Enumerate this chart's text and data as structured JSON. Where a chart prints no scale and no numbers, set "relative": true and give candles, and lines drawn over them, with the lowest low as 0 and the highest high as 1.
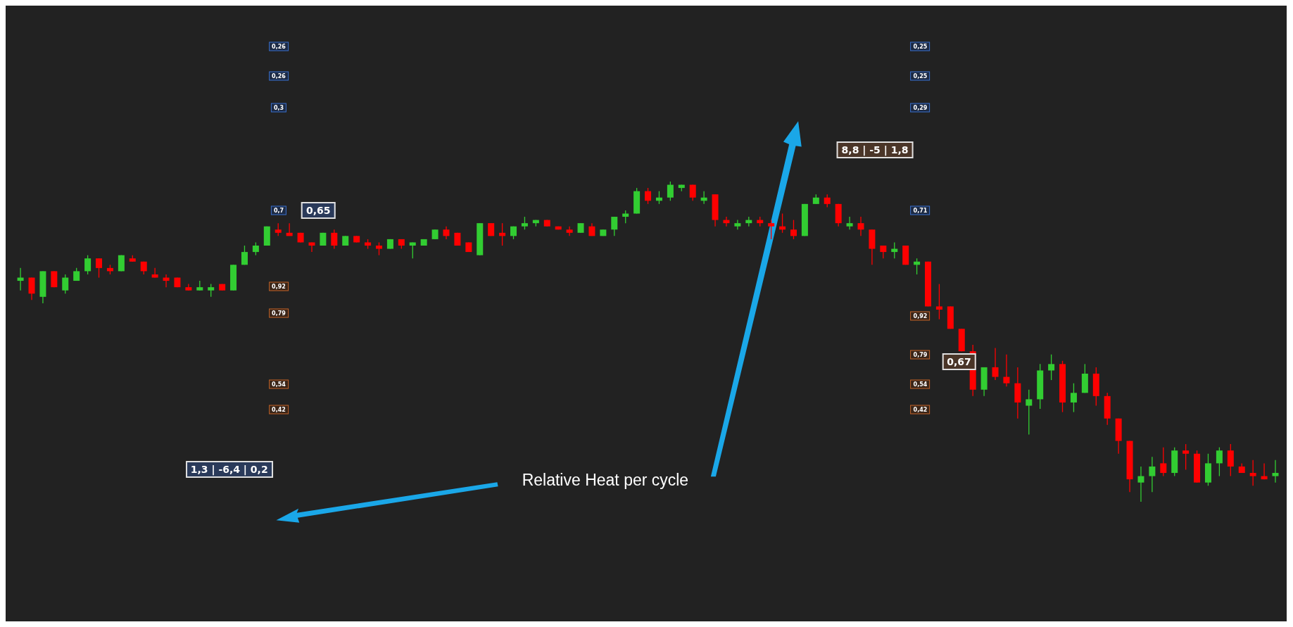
{
  "chart_data": {
    "type": "candlestick",
    "relative": true,
    "categories": [
      null,
      null,
      null,
      null,
      null,
      null,
      null,
      null,
      null,
      null,
      null,
      null,
      null,
      null,
      null,
      null,
      null,
      null,
      null,
      null,
      null,
      null,
      null,
      null,
      null,
      null,
      null,
      null,
      null,
      null,
      null,
      null,
      null,
      null,
      null,
      null,
      null,
      null,
      null,
      null,
      null,
      null,
      null,
      null,
      null,
      null,
      null,
      null,
      null,
      null,
      null,
      null,
      null,
      null,
      null,
      null,
      null,
      null,
      null,
      null,
      null,
      null,
      null,
      null,
      null,
      null,
      null,
      null,
      null,
      null,
      null,
      null,
      null,
      null,
      null,
      null,
      null,
      null,
      null,
      null,
      null,
      null,
      null,
      null,
      null,
      null,
      null,
      null,
      null,
      null,
      null,
      null,
      null,
      null,
      null,
      null,
      null,
      null,
      null,
      null,
      null,
      null,
      null,
      null,
      null,
      null,
      null,
      null,
      null,
      null,
      null,
      null,
      null
    ],
    "ohlc": [
      [
        0.69,
        0.73,
        0.66,
        0.7
      ],
      [
        0.7,
        0.7,
        0.63,
        0.65
      ],
      [
        0.64,
        0.72,
        0.62,
        0.72
      ],
      [
        0.72,
        0.72,
        0.67,
        0.67
      ],
      [
        0.66,
        0.71,
        0.65,
        0.7
      ],
      [
        0.69,
        0.73,
        0.69,
        0.72
      ],
      [
        0.72,
        0.77,
        0.71,
        0.76
      ],
      [
        0.76,
        0.76,
        0.7,
        0.73
      ],
      [
        0.73,
        0.74,
        0.71,
        0.72
      ],
      [
        0.72,
        0.77,
        0.72,
        0.77
      ],
      [
        0.76,
        0.77,
        0.75,
        0.75
      ],
      [
        0.75,
        0.75,
        0.71,
        0.72
      ],
      [
        0.71,
        0.73,
        0.7,
        0.7
      ],
      [
        0.7,
        0.71,
        0.67,
        0.69
      ],
      [
        0.7,
        0.7,
        0.67,
        0.67
      ],
      [
        0.67,
        0.68,
        0.66,
        0.66
      ],
      [
        0.66,
        0.69,
        0.66,
        0.67
      ],
      [
        0.66,
        0.68,
        0.64,
        0.67
      ],
      [
        0.68,
        0.68,
        0.66,
        0.66
      ],
      [
        0.66,
        0.74,
        0.66,
        0.74
      ],
      [
        0.74,
        0.8,
        0.74,
        0.78
      ],
      [
        0.78,
        0.81,
        0.77,
        0.8
      ],
      [
        0.8,
        0.86,
        0.8,
        0.86
      ],
      [
        0.85,
        0.87,
        0.83,
        0.84
      ],
      [
        0.84,
        0.87,
        0.83,
        0.83
      ],
      [
        0.84,
        0.84,
        0.81,
        0.81
      ],
      [
        0.81,
        0.81,
        0.78,
        0.8
      ],
      [
        0.8,
        0.84,
        0.8,
        0.84
      ],
      [
        0.84,
        0.85,
        0.79,
        0.8
      ],
      [
        0.8,
        0.83,
        0.8,
        0.83
      ],
      [
        0.83,
        0.83,
        0.81,
        0.81
      ],
      [
        0.81,
        0.82,
        0.79,
        0.8
      ],
      [
        0.8,
        0.81,
        0.77,
        0.79
      ],
      [
        0.79,
        0.82,
        0.79,
        0.82
      ],
      [
        0.82,
        0.82,
        0.79,
        0.8
      ],
      [
        0.8,
        0.81,
        0.76,
        0.81
      ],
      [
        0.8,
        0.82,
        0.8,
        0.82
      ],
      [
        0.82,
        0.85,
        0.82,
        0.85
      ],
      [
        0.85,
        0.86,
        0.82,
        0.83
      ],
      [
        0.84,
        0.84,
        0.8,
        0.8
      ],
      [
        0.81,
        0.81,
        0.78,
        0.78
      ],
      [
        0.77,
        0.87,
        0.77,
        0.87
      ],
      [
        0.87,
        0.87,
        0.83,
        0.83
      ],
      [
        0.84,
        0.87,
        0.8,
        0.83
      ],
      [
        0.83,
        0.86,
        0.82,
        0.86
      ],
      [
        0.86,
        0.89,
        0.85,
        0.87
      ],
      [
        0.87,
        0.88,
        0.86,
        0.88
      ],
      [
        0.88,
        0.88,
        0.86,
        0.86
      ],
      [
        0.86,
        0.86,
        0.85,
        0.85
      ],
      [
        0.85,
        0.86,
        0.83,
        0.84
      ],
      [
        0.84,
        0.87,
        0.84,
        0.87
      ],
      [
        0.86,
        0.87,
        0.83,
        0.83
      ],
      [
        0.83,
        0.85,
        0.83,
        0.85
      ],
      [
        0.85,
        0.89,
        0.83,
        0.89
      ],
      [
        0.89,
        0.91,
        0.87,
        0.9
      ],
      [
        0.9,
        0.98,
        0.9,
        0.97
      ],
      [
        0.97,
        0.98,
        0.93,
        0.94
      ],
      [
        0.94,
        0.97,
        0.93,
        0.95
      ],
      [
        0.95,
        1,
        0.94,
        0.99
      ],
      [
        0.98,
        0.99,
        0.97,
        0.99
      ],
      [
        0.99,
        0.99,
        0.94,
        0.95
      ],
      [
        0.94,
        0.97,
        0.93,
        0.95
      ],
      [
        0.96,
        0.96,
        0.86,
        0.88
      ],
      [
        0.88,
        0.89,
        0.86,
        0.87
      ],
      [
        0.86,
        0.88,
        0.85,
        0.87
      ],
      [
        0.87,
        0.89,
        0.86,
        0.88
      ],
      [
        0.88,
        0.89,
        0.86,
        0.87
      ],
      [
        0.87,
        0.88,
        0.82,
        0.86
      ],
      [
        0.86,
        0.9,
        0.84,
        0.85
      ],
      [
        0.85,
        0.88,
        0.82,
        0.83
      ],
      [
        0.83,
        0.93,
        0.83,
        0.93
      ],
      [
        0.93,
        0.96,
        0.93,
        0.95
      ],
      [
        0.95,
        0.96,
        0.92,
        0.93
      ],
      [
        0.93,
        0.93,
        0.86,
        0.87
      ],
      [
        0.86,
        0.89,
        0.85,
        0.87
      ],
      [
        0.87,
        0.89,
        0.83,
        0.85
      ],
      [
        0.85,
        0.85,
        0.74,
        0.79
      ],
      [
        0.8,
        0.8,
        0.76,
        0.78
      ],
      [
        0.78,
        0.81,
        0.76,
        0.79
      ],
      [
        0.8,
        0.8,
        0.74,
        0.74
      ],
      [
        0.74,
        0.76,
        0.71,
        0.75
      ],
      [
        0.75,
        0.75,
        0.61,
        0.61
      ],
      [
        0.61,
        0.68,
        0.57,
        0.6
      ],
      [
        0.61,
        0.61,
        0.54,
        0.54
      ],
      [
        0.54,
        0.54,
        0.47,
        0.47
      ],
      [
        0.47,
        0.49,
        0.33,
        0.35
      ],
      [
        0.35,
        0.42,
        0.33,
        0.42
      ],
      [
        0.42,
        0.48,
        0.38,
        0.39
      ],
      [
        0.39,
        0.46,
        0.36,
        0.37
      ],
      [
        0.37,
        0.42,
        0.26,
        0.31
      ],
      [
        0.3,
        0.35,
        0.21,
        0.32
      ],
      [
        0.32,
        0.43,
        0.29,
        0.41
      ],
      [
        0.41,
        0.46,
        0.38,
        0.43
      ],
      [
        0.43,
        0.44,
        0.28,
        0.31
      ],
      [
        0.31,
        0.37,
        0.28,
        0.34
      ],
      [
        0.34,
        0.43,
        0.34,
        0.4
      ],
      [
        0.4,
        0.42,
        0.3,
        0.33
      ],
      [
        0.33,
        0.34,
        0.24,
        0.26
      ],
      [
        0.26,
        0.26,
        0.15,
        0.19
      ],
      [
        0.19,
        0.19,
        0.03,
        0.07
      ],
      [
        0.06,
        0.11,
        0,
        0.08
      ],
      [
        0.08,
        0.14,
        0.03,
        0.11
      ],
      [
        0.12,
        0.17,
        0.08,
        0.09
      ],
      [
        0.09,
        0.17,
        0.08,
        0.16
      ],
      [
        0.16,
        0.18,
        0.1,
        0.15
      ],
      [
        0.15,
        0.16,
        0.06,
        0.06
      ],
      [
        0.06,
        0.15,
        0.05,
        0.12
      ],
      [
        0.12,
        0.17,
        0.08,
        0.16
      ],
      [
        0.16,
        0.18,
        0.08,
        0.11
      ],
      [
        0.11,
        0.12,
        0.09,
        0.09
      ],
      [
        0.09,
        0.13,
        0.05,
        0.08
      ],
      [
        0.08,
        0.12,
        0.07,
        0.07
      ],
      [
        0.08,
        0.13,
        0.06,
        0.09
      ]
    ],
    "colors": [
      "#32cd32",
      "#ff0000",
      "#32cd32",
      "#ff0000",
      "#32cd32",
      "#32cd32",
      "#32cd32",
      "#ff0000",
      "#ff0000",
      "#32cd32",
      "#ff0000",
      "#ff0000",
      "#ff0000",
      "#ff0000",
      "#ff0000",
      "#ff0000",
      "#32cd32",
      "#32cd32",
      "#ff0000",
      "#32cd32",
      "#32cd32",
      "#32cd32",
      "#32cd32",
      "#ff0000",
      "#ff0000",
      "#ff0000",
      "#ff0000",
      "#32cd32",
      "#ff0000",
      "#32cd32",
      "#ff0000",
      "#ff0000",
      "#ff0000",
      "#32cd32",
      "#ff0000",
      "#32cd32",
      "#32cd32",
      "#32cd32",
      "#ff0000",
      "#ff0000",
      "#ff0000",
      "#32cd32",
      "#ff0000",
      "#ff0000",
      "#32cd32",
      "#32cd32",
      "#32cd32",
      "#ff0000",
      "#ff0000",
      "#ff0000",
      "#32cd32",
      "#ff0000",
      "#32cd32",
      "#32cd32",
      "#32cd32",
      "#32cd32",
      "#ff0000",
      "#32cd32",
      "#32cd32",
      "#32cd32",
      "#ff0000",
      "#32cd32",
      "#ff0000",
      "#ff0000",
      "#32cd32",
      "#32cd32",
      "#ff0000",
      "#ff0000",
      "#ff0000",
      "#ff0000",
      "#32cd32",
      "#32cd32",
      "#ff0000",
      "#ff0000",
      "#32cd32",
      "#ff0000",
      "#ff0000",
      "#ff0000",
      "#32cd32",
      "#ff0000",
      "#32cd32",
      "#ff0000",
      "#ff0000",
      "#ff0000",
      "#ff0000",
      "#ff0000",
      "#32cd32",
      "#ff0000",
      "#ff0000",
      "#ff0000",
      "#32cd32",
      "#32cd32",
      "#32cd32",
      "#ff0000",
      "#32cd32",
      "#32cd32",
      "#ff0000",
      "#ff0000",
      "#ff0000",
      "#ff0000",
      "#32cd32",
      "#32cd32",
      "#ff0000",
      "#32cd32",
      "#ff0000",
      "#ff0000",
      "#32cd32",
      "#32cd32",
      "#ff0000",
      "#ff0000",
      "#ff0000",
      "#ff0000",
      "#32cd32"
    ],
    "annotations": [
      "0,26",
      "0,26",
      "0,3",
      "0,7",
      "0,92",
      "0,79",
      "0,54",
      "0,42",
      "0,25",
      "0,25",
      "0,29",
      "0,71",
      "0,92",
      "0,79",
      "0,54",
      "0,42",
      "0,65",
      "8,8 | -5 | 1,8",
      "1,3 | -6,4 | 0,2",
      "0,67",
      "Relative Heat per cycle"
    ]
  }
}
